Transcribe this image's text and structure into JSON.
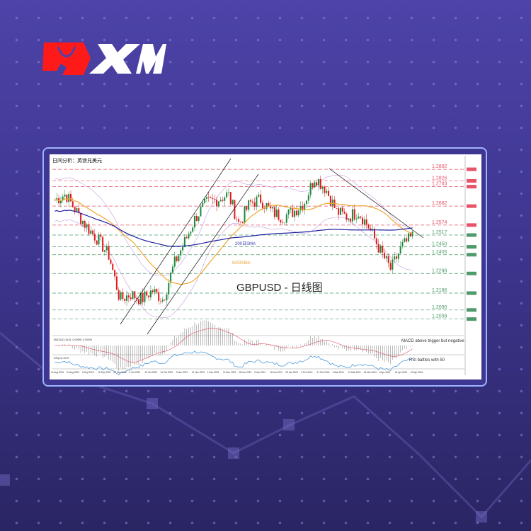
{
  "brand": {
    "name": "XM",
    "logo_red": "#ff1a1a"
  },
  "colors": {
    "bull": "#1a8a3a",
    "bear": "#e0191b",
    "resistance": "#e8536a",
    "support": "#4f9a6a",
    "sma200": "#1e1ea0",
    "sma50": "#f0a830",
    "bollinger": "#c79be0",
    "rsi": "#3a8fd8"
  },
  "chart_data": {
    "type": "candlestick",
    "title": "日间分析：英镑兑美元",
    "watermark": "GBPUSD - 日线图",
    "ylim": [
      1.196,
      1.2961
    ],
    "x_tick_labels": [
      "14 Aug 2023",
      "24 Aug 2023",
      "5 Sep 2023",
      "15 Sep 2023",
      "27 Sep 2023",
      "9 Oct 2023",
      "19 Oct 2023",
      "31 Oct 2023",
      "9 Nov 2023",
      "21 Nov 2023",
      "1 Dec 2023",
      "12 Dec 2023",
      "26 Dec 2023",
      "5 Jan 2024",
      "18 Jan 2024",
      "30 Jan 2024",
      "9 Feb 2024",
      "21 Feb 2024",
      "4 Mar 2024",
      "14 Mar 2024",
      "26 Mar 2024",
      "5 Apr 2024",
      "16 Apr 2024",
      "24 Apr 2024"
    ],
    "price_path": [
      1.2716,
      1.275,
      1.265,
      1.256,
      1.249,
      1.24,
      1.215,
      1.218,
      1.215,
      1.22,
      1.215,
      1.235,
      1.248,
      1.262,
      1.27,
      1.272,
      1.275,
      1.258,
      1.27,
      1.272,
      1.265,
      1.262,
      1.265,
      1.27,
      1.285,
      1.278,
      1.265,
      1.262,
      1.265,
      1.256,
      1.243,
      1.232,
      1.245,
      1.251
    ],
    "levels": [
      {
        "value": "1.2892",
        "type": "resistance"
      },
      {
        "value": "1.2826",
        "type": "resistance"
      },
      {
        "value": "1.2793",
        "type": "resistance"
      },
      {
        "value": "1.2682",
        "type": "resistance"
      },
      {
        "value": "1.2574",
        "type": "resistance"
      },
      {
        "value": "1.2517",
        "type": "support"
      },
      {
        "value": "1.2450",
        "type": "support"
      },
      {
        "value": "1.2405",
        "type": "support"
      },
      {
        "value": "1.2298",
        "type": "support"
      },
      {
        "value": "1.2186",
        "type": "support"
      },
      {
        "value": "1.2090",
        "type": "support"
      },
      {
        "value": "1.2038",
        "type": "support"
      }
    ],
    "indicator_labels": {
      "sma200": "200日SMA",
      "sma50": "50日SMA"
    },
    "macd": {
      "header": "MACD(12,26,9) -0.00058 -0.00094",
      "note": "MACD above trigger but negative"
    },
    "rsi": {
      "header": "RSI(14) 49.37",
      "note": "RSI battles with 50"
    }
  }
}
